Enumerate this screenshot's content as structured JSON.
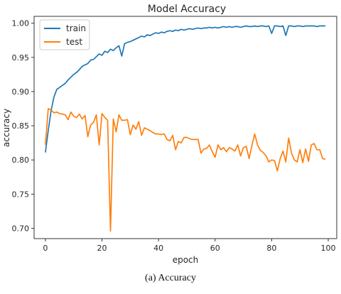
{
  "chart_data": {
    "type": "line",
    "title": "Model Accuracy",
    "xlabel": "epoch",
    "ylabel": "accuracy",
    "xlim": [
      -4,
      103
    ],
    "ylim": [
      0.685,
      1.01
    ],
    "xticks": [
      "0",
      "20",
      "40",
      "60",
      "80",
      "100"
    ],
    "yticks": [
      "0.70",
      "0.75",
      "0.80",
      "0.85",
      "0.90",
      "0.95",
      "1.00"
    ],
    "legend_position": "top-left",
    "series": [
      {
        "name": "train",
        "color": "#1f77b4",
        "x": [
          0,
          1,
          2,
          3,
          4,
          5,
          6,
          7,
          8,
          9,
          10,
          11,
          12,
          13,
          14,
          15,
          16,
          17,
          18,
          19,
          20,
          21,
          22,
          23,
          24,
          25,
          26,
          27,
          28,
          29,
          30,
          31,
          32,
          33,
          34,
          35,
          36,
          37,
          38,
          39,
          40,
          41,
          42,
          43,
          44,
          45,
          46,
          47,
          48,
          49,
          50,
          51,
          52,
          53,
          54,
          55,
          56,
          57,
          58,
          59,
          60,
          61,
          62,
          63,
          64,
          65,
          66,
          67,
          68,
          69,
          70,
          71,
          72,
          73,
          74,
          75,
          76,
          77,
          78,
          79,
          80,
          81,
          82,
          83,
          84,
          85,
          86,
          87,
          88,
          89,
          90,
          91,
          92,
          93,
          94,
          95,
          96,
          97,
          98,
          99
        ],
        "values": [
          0.811,
          0.843,
          0.872,
          0.892,
          0.903,
          0.906,
          0.909,
          0.912,
          0.917,
          0.921,
          0.925,
          0.928,
          0.932,
          0.937,
          0.939,
          0.941,
          0.946,
          0.947,
          0.951,
          0.955,
          0.953,
          0.959,
          0.957,
          0.962,
          0.96,
          0.964,
          0.967,
          0.952,
          0.97,
          0.972,
          0.973,
          0.975,
          0.977,
          0.979,
          0.981,
          0.98,
          0.983,
          0.982,
          0.984,
          0.986,
          0.985,
          0.987,
          0.986,
          0.988,
          0.989,
          0.988,
          0.99,
          0.989,
          0.991,
          0.99,
          0.991,
          0.992,
          0.991,
          0.992,
          0.993,
          0.992,
          0.993,
          0.993,
          0.994,
          0.993,
          0.994,
          0.993,
          0.994,
          0.995,
          0.994,
          0.995,
          0.994,
          0.995,
          0.995,
          0.994,
          0.995,
          0.996,
          0.995,
          0.995,
          0.996,
          0.995,
          0.996,
          0.996,
          0.995,
          0.996,
          0.985,
          0.996,
          0.996,
          0.995,
          0.996,
          0.982,
          0.996,
          0.996,
          0.995,
          0.996,
          0.996,
          0.995,
          0.996,
          0.996,
          0.996,
          0.996,
          0.995,
          0.996,
          0.996,
          0.996
        ]
      },
      {
        "name": "test",
        "color": "#ff7f0e",
        "x": [
          0,
          1,
          2,
          3,
          4,
          5,
          6,
          7,
          8,
          9,
          10,
          11,
          12,
          13,
          14,
          15,
          16,
          17,
          18,
          19,
          20,
          21,
          22,
          23,
          24,
          25,
          26,
          27,
          28,
          29,
          30,
          31,
          32,
          33,
          34,
          35,
          36,
          37,
          38,
          39,
          40,
          41,
          42,
          43,
          44,
          45,
          46,
          47,
          48,
          49,
          50,
          51,
          52,
          53,
          54,
          55,
          56,
          57,
          58,
          59,
          60,
          61,
          62,
          63,
          64,
          65,
          66,
          67,
          68,
          69,
          70,
          71,
          72,
          73,
          74,
          75,
          76,
          77,
          78,
          79,
          80,
          81,
          82,
          83,
          84,
          85,
          86,
          87,
          88,
          89,
          90,
          91,
          92,
          93,
          94,
          95,
          96,
          97,
          98,
          99
        ],
        "values": [
          0.822,
          0.875,
          0.873,
          0.869,
          0.87,
          0.868,
          0.867,
          0.866,
          0.859,
          0.87,
          0.864,
          0.862,
          0.867,
          0.86,
          0.865,
          0.834,
          0.851,
          0.855,
          0.866,
          0.822,
          0.868,
          0.862,
          0.858,
          0.696,
          0.86,
          0.841,
          0.866,
          0.858,
          0.858,
          0.859,
          0.837,
          0.851,
          0.845,
          0.856,
          0.836,
          0.847,
          0.845,
          0.843,
          0.84,
          0.838,
          0.838,
          0.837,
          0.838,
          0.83,
          0.828,
          0.836,
          0.815,
          0.827,
          0.825,
          0.833,
          0.833,
          0.831,
          0.83,
          0.83,
          0.83,
          0.81,
          0.816,
          0.817,
          0.822,
          0.812,
          0.804,
          0.822,
          0.815,
          0.818,
          0.812,
          0.818,
          0.816,
          0.813,
          0.822,
          0.806,
          0.818,
          0.82,
          0.802,
          0.821,
          0.838,
          0.822,
          0.814,
          0.811,
          0.806,
          0.797,
          0.8,
          0.799,
          0.784,
          0.802,
          0.813,
          0.797,
          0.832,
          0.81,
          0.8,
          0.797,
          0.815,
          0.796,
          0.816,
          0.798,
          0.822,
          0.824,
          0.815,
          0.815,
          0.802,
          0.801
        ]
      }
    ]
  },
  "caption": "(a) Accuracy"
}
